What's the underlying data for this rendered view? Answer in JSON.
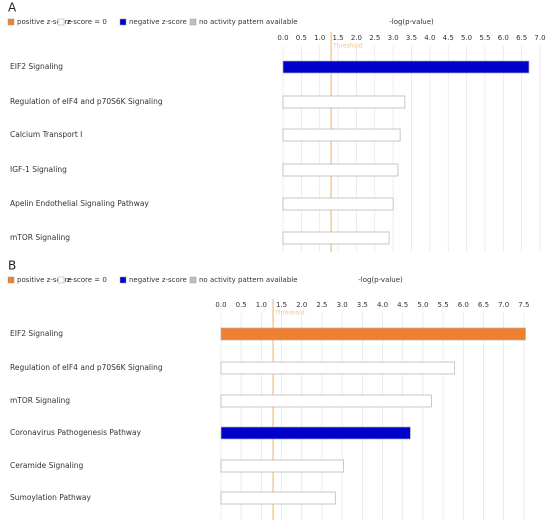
{
  "chart_data": [
    {
      "type": "bar",
      "orientation": "horizontal",
      "panel_label": "A",
      "x_label": "-log(p-value)",
      "legend": [
        {
          "name": "positive z-score",
          "color": "#f07f2f"
        },
        {
          "name": "z-score = 0",
          "color": "#ffffff"
        },
        {
          "name": "negative z-score",
          "color": "#0000cc"
        },
        {
          "name": "no activity pattern available",
          "color": "#c0c0c0"
        }
      ],
      "categories": [
        "EIF2 Signaling",
        "Regulation of eIF4 and p70S6K Signaling",
        "Calcium Transport I",
        "IGF-1 Signaling",
        "Apelin Endothelial Signaling Pathway",
        "mTOR Signaling"
      ],
      "values": [
        6.7,
        3.32,
        3.19,
        3.13,
        3.0,
        2.89
      ],
      "colors": [
        "#0000cc",
        "#ffffff",
        "#ffffff",
        "#ffffff",
        "#ffffff",
        "#ffffff"
      ],
      "threshold": {
        "value": 1.31,
        "label": "Threshold"
      },
      "xlim": [
        0,
        7
      ],
      "xticks": [
        {
          "value": 0,
          "label": "0.0"
        },
        0.5,
        {
          "value": 1,
          "label": "1.0"
        },
        1.5,
        {
          "value": 2,
          "label": "2.0"
        },
        2.5,
        {
          "value": 3,
          "label": "3.0"
        },
        3.5,
        {
          "value": 4,
          "label": "4.0"
        },
        4.5,
        {
          "value": 5,
          "label": "5.0"
        },
        5.5,
        {
          "value": 6,
          "label": "6.0"
        },
        6.5,
        {
          "value": 7,
          "label": "7.0"
        }
      ],
      "grid": true
    },
    {
      "type": "bar",
      "orientation": "horizontal",
      "panel_label": "B",
      "x_label": "-log(p-value)",
      "legend": [
        {
          "name": "positive z-score",
          "color": "#f07f2f"
        },
        {
          "name": "z-score = 0",
          "color": "#ffffff"
        },
        {
          "name": "negative z-score",
          "color": "#0000cc"
        },
        {
          "name": "no activity pattern available",
          "color": "#c0c0c0"
        }
      ],
      "categories": [
        "EIF2 Signaling",
        "Regulation of eIF4 and p70S6K Signaling",
        "mTOR Signaling",
        "Coronavirus Pathogenesis Pathway",
        "Ceramide Signaling",
        "Sumoylation Pathway"
      ],
      "values": [
        7.54,
        5.78,
        5.21,
        4.69,
        3.03,
        2.83
      ],
      "colors": [
        "#f07f2f",
        "#ffffff",
        "#ffffff",
        "#0000cc",
        "#ffffff",
        "#ffffff"
      ],
      "threshold": {
        "value": 1.29,
        "label": "Threshold"
      },
      "xlim": [
        0,
        7.9
      ],
      "xticks": [
        {
          "value": 0,
          "label": "0.0"
        },
        0.5,
        {
          "value": 1,
          "label": "1.0"
        },
        1.5,
        {
          "value": 2,
          "label": "2.0"
        },
        2.5,
        {
          "value": 3,
          "label": "3.0"
        },
        3.5,
        {
          "value": 4,
          "label": "4.0"
        },
        4.5,
        {
          "value": 5,
          "label": "5.0"
        },
        5.5,
        {
          "value": 6,
          "label": "6.0"
        },
        6.5,
        {
          "value": 7,
          "label": "7.0"
        },
        7.5
      ],
      "grid": true
    }
  ]
}
